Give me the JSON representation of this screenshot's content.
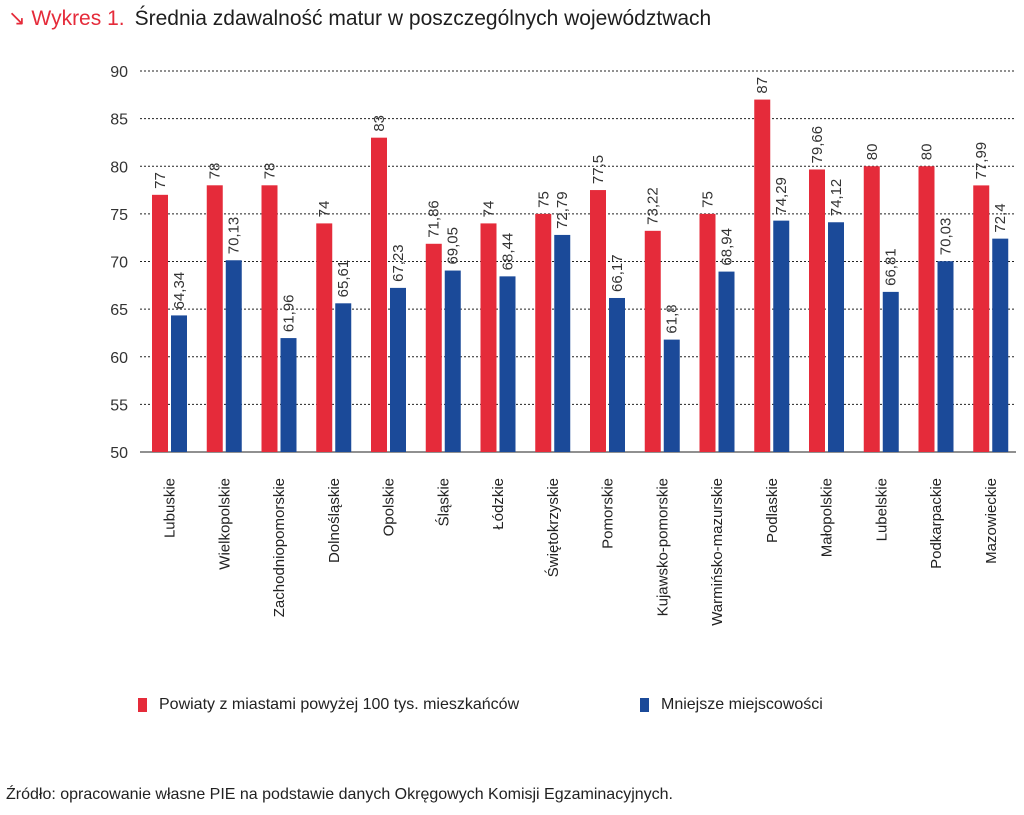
{
  "header": {
    "label": "↘ Wykres 1.",
    "title": "Średnia zdawalność matur w poszczególnych województwach"
  },
  "chart_data": {
    "type": "bar",
    "title": "Średnia zdawalność matur w poszczególnych województwach",
    "xlabel": "",
    "ylabel": "",
    "ylim": [
      50,
      90
    ],
    "yticks": [
      50,
      55,
      60,
      65,
      70,
      75,
      80,
      85,
      90
    ],
    "grid": true,
    "legend_position": "bottom",
    "categories": [
      "Lubuskie",
      "Wielkopolskie",
      "Zachodniopomorskie",
      "Dolnośląskie",
      "Opolskie",
      "Śląskie",
      "Łódzkie",
      "Świętokrzyskie",
      "Pomorskie",
      "Kujawsko-pomorskie",
      "Warmińsko-mazurskie",
      "Podlaskie",
      "Małopolskie",
      "Lubelskie",
      "Podkarpackie",
      "Mazowieckie"
    ],
    "series": [
      {
        "name": "Powiaty z miastami powyżej 100 tys. mieszkańców",
        "color": "#e52b3a",
        "values": [
          77,
          78,
          78,
          74,
          83,
          71.86,
          74,
          75,
          77.5,
          73.22,
          75,
          87,
          79.66,
          80,
          80,
          77.99
        ],
        "labels": [
          "77",
          "78",
          "78",
          "74",
          "83",
          "71,86",
          "74",
          "75",
          "77,5",
          "73,22",
          "75",
          "87",
          "79,66",
          "80",
          "80",
          "77,99"
        ]
      },
      {
        "name": "Mniejsze miejscowości",
        "color": "#1b4a99",
        "values": [
          64.34,
          70.13,
          61.96,
          65.61,
          67.23,
          69.05,
          68.44,
          72.79,
          66.17,
          61.8,
          68.94,
          74.29,
          74.12,
          66.81,
          70.03,
          72.4
        ],
        "labels": [
          "64,34",
          "70,13",
          "61,96",
          "65,61",
          "67,23",
          "69,05",
          "68,44",
          "72,79",
          "66,17",
          "61,8",
          "68,94",
          "74,29",
          "74,12",
          "66,81",
          "70,03",
          "72,4"
        ]
      }
    ]
  },
  "source": "Źródło: opracowanie własne PIE na podstawie danych Okręgowych Komisji Egzaminacyjnych."
}
